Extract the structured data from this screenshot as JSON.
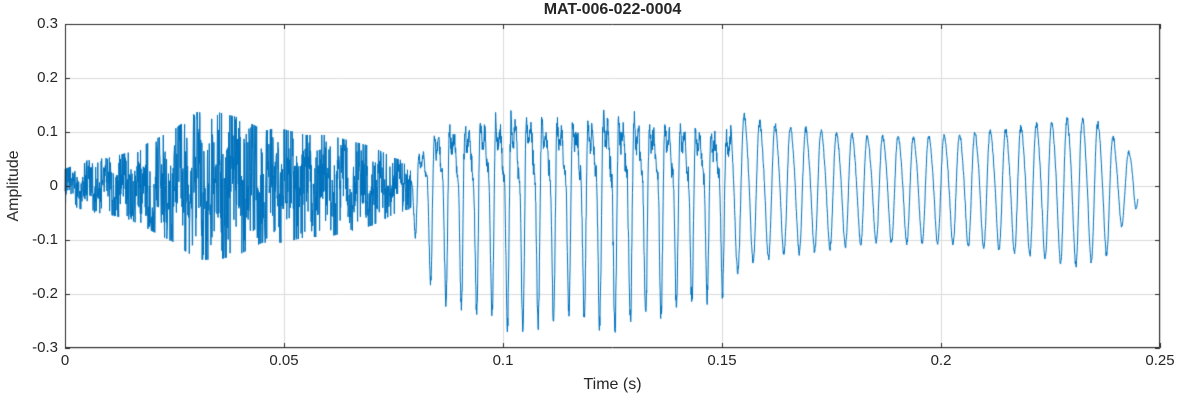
{
  "chart_data": {
    "type": "line",
    "title": "MAT-006-022-0004",
    "xlabel": "Time (s)",
    "ylabel": "Amplitude",
    "xlim": [
      0,
      0.25
    ],
    "ylim": [
      -0.3,
      0.3
    ],
    "x_ticks": [
      0,
      0.05,
      0.1,
      0.15,
      0.2,
      0.25
    ],
    "x_tick_labels": [
      "0",
      "0.05",
      "0.1",
      "0.15",
      "0.2",
      "0.25"
    ],
    "y_ticks": [
      -0.3,
      -0.2,
      -0.1,
      0,
      0.1,
      0.2,
      0.3
    ],
    "y_tick_labels": [
      "-0.3",
      "-0.2",
      "-0.1",
      "0",
      "0.1",
      "0.2",
      "0.3"
    ],
    "grid": true,
    "legend": "none",
    "line_color": "#0072BD",
    "axis_color": "#262626",
    "grid_color": "#DCDCDC",
    "background": "#FFFFFF",
    "signal": {
      "description": "speech-like waveform: unvoiced noisy burst, strong voiced vowel, decaying quasi-sinusoidal tail",
      "sample_rate": 16000,
      "f0_hz": 285,
      "segments": [
        {
          "name": "noise-burst",
          "kind": "noise",
          "t_start": 0.0,
          "t_end": 0.079,
          "envelope": [
            [
              0.0,
              0.03
            ],
            [
              0.005,
              0.045
            ],
            [
              0.01,
              0.05
            ],
            [
              0.015,
              0.06
            ],
            [
              0.02,
              0.08
            ],
            [
              0.025,
              0.1
            ],
            [
              0.03,
              0.13
            ],
            [
              0.035,
              0.13
            ],
            [
              0.04,
              0.12
            ],
            [
              0.045,
              0.1
            ],
            [
              0.05,
              0.1
            ],
            [
              0.055,
              0.09
            ],
            [
              0.06,
              0.09
            ],
            [
              0.065,
              0.08
            ],
            [
              0.07,
              0.07
            ],
            [
              0.075,
              0.05
            ],
            [
              0.079,
              0.04
            ]
          ]
        },
        {
          "name": "voiced-vowel",
          "kind": "harmonic",
          "t_start": 0.079,
          "t_end": 0.152,
          "envelope": [
            [
              0.079,
              0.06
            ],
            [
              0.082,
              0.13
            ],
            [
              0.085,
              0.19
            ],
            [
              0.09,
              0.2
            ],
            [
              0.095,
              0.21
            ],
            [
              0.1,
              0.225
            ],
            [
              0.105,
              0.235
            ],
            [
              0.11,
              0.22
            ],
            [
              0.115,
              0.21
            ],
            [
              0.12,
              0.22
            ],
            [
              0.125,
              0.245
            ],
            [
              0.13,
              0.22
            ],
            [
              0.135,
              0.21
            ],
            [
              0.14,
              0.2
            ],
            [
              0.145,
              0.19
            ],
            [
              0.152,
              0.17
            ]
          ]
        },
        {
          "name": "decaying-tail",
          "kind": "tone",
          "t_start": 0.152,
          "t_end": 0.245,
          "envelope": [
            [
              0.152,
              0.16
            ],
            [
              0.158,
              0.13
            ],
            [
              0.165,
              0.12
            ],
            [
              0.175,
              0.11
            ],
            [
              0.185,
              0.1
            ],
            [
              0.195,
              0.1
            ],
            [
              0.205,
              0.105
            ],
            [
              0.215,
              0.115
            ],
            [
              0.225,
              0.13
            ],
            [
              0.232,
              0.14
            ],
            [
              0.238,
              0.12
            ],
            [
              0.242,
              0.06
            ],
            [
              0.244,
              0.08
            ],
            [
              0.245,
              0.02
            ]
          ]
        }
      ]
    }
  }
}
